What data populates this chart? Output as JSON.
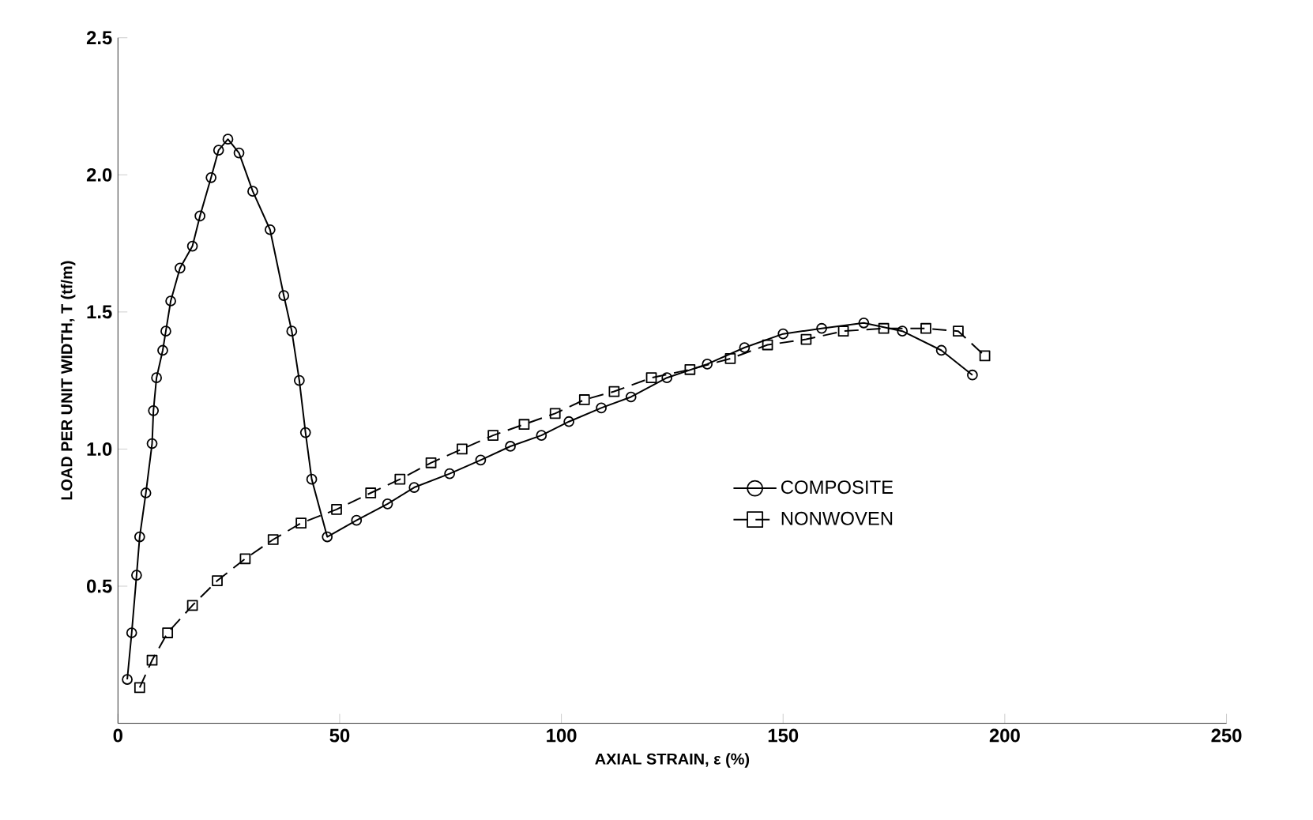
{
  "chart_data": {
    "type": "line",
    "xlabel": "AXIAL STRAIN, ε (%)",
    "ylabel": "LOAD PER UNIT WIDTH, T (tf/m)",
    "xlim": [
      0,
      250
    ],
    "xticks": [
      0,
      50,
      100,
      150,
      200,
      250
    ],
    "ylim": [
      0,
      2.5
    ],
    "yticks": [
      {
        "value": 0.5,
        "label": "0.5"
      },
      {
        "value": 1.0,
        "label": "1.0"
      },
      {
        "value": 1.5,
        "label": "1.5"
      },
      {
        "value": 2.0,
        "label": "2.0"
      },
      {
        "value": 2.5,
        "label": "2.5"
      }
    ],
    "grid": false,
    "legend": "right",
    "series": [
      {
        "name": "COMPOSITE",
        "color": "#000000",
        "marker": "circle",
        "line_style": "solid",
        "x": [
          2.1,
          3.1,
          4.2,
          4.9,
          6.3,
          7.7,
          8.0,
          8.7,
          10.1,
          10.8,
          11.9,
          14.0,
          16.8,
          18.5,
          21.0,
          22.7,
          24.8,
          27.3,
          30.4,
          34.3,
          37.4,
          39.2,
          40.9,
          42.3,
          43.7,
          47.2,
          53.8,
          60.8,
          66.8,
          74.8,
          81.8,
          88.5,
          95.5,
          101.7,
          109,
          115.7,
          123.8,
          132.9,
          141.3,
          150,
          158.7,
          168.2,
          176.9,
          185.7,
          192.7
        ],
        "values": [
          0.16,
          0.33,
          0.54,
          0.68,
          0.84,
          1.02,
          1.14,
          1.26,
          1.36,
          1.43,
          1.54,
          1.66,
          1.74,
          1.85,
          1.99,
          2.09,
          2.13,
          2.08,
          1.94,
          1.8,
          1.56,
          1.43,
          1.25,
          1.06,
          0.89,
          0.68,
          0.74,
          0.8,
          0.86,
          0.91,
          0.96,
          1.01,
          1.05,
          1.1,
          1.15,
          1.19,
          1.26,
          1.31,
          1.37,
          1.42,
          1.44,
          1.46,
          1.43,
          1.36,
          1.27
        ]
      },
      {
        "name": "NONWOVEN",
        "color": "#000000",
        "marker": "square",
        "line_style": "dashed",
        "x": [
          4.9,
          7.7,
          11.2,
          16.8,
          22.4,
          28.7,
          35,
          41.3,
          49.3,
          57,
          63.6,
          70.6,
          77.6,
          84.6,
          91.6,
          98.6,
          105.2,
          111.9,
          120.3,
          129,
          138.1,
          146.5,
          155.2,
          163.6,
          172.7,
          182.2,
          189.5,
          195.5
        ],
        "values": [
          0.13,
          0.23,
          0.33,
          0.43,
          0.52,
          0.6,
          0.67,
          0.73,
          0.78,
          0.84,
          0.89,
          0.95,
          1.0,
          1.05,
          1.09,
          1.13,
          1.18,
          1.21,
          1.26,
          1.29,
          1.33,
          1.38,
          1.4,
          1.43,
          1.44,
          1.44,
          1.43,
          1.34
        ]
      }
    ]
  }
}
